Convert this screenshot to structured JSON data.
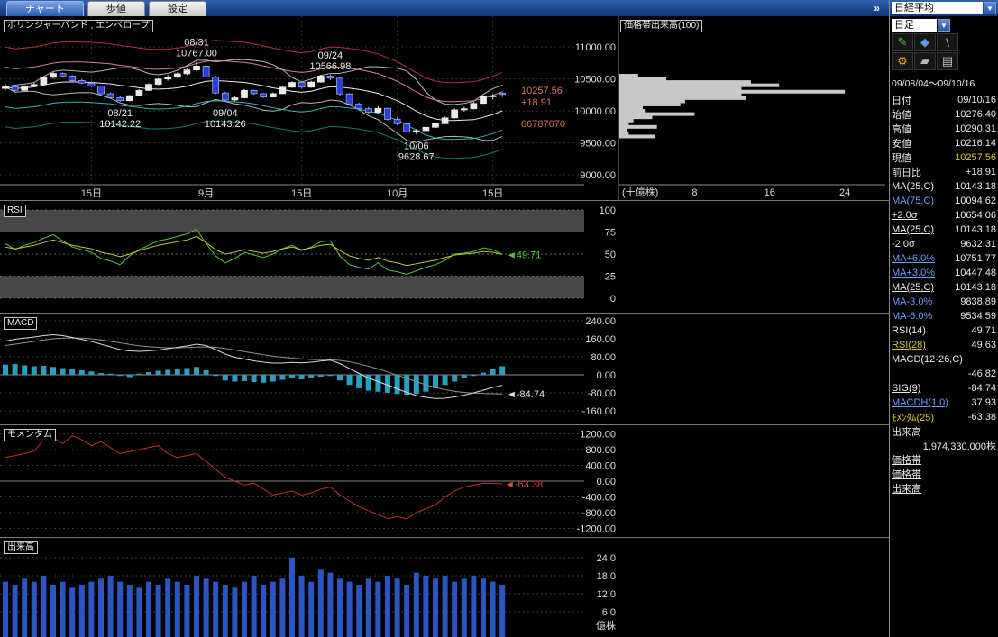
{
  "topbar": {
    "tabs": [
      {
        "label": "チャート",
        "active": true
      },
      {
        "label": "歩値",
        "active": false
      },
      {
        "label": "設定",
        "active": false
      }
    ],
    "overflow_icon": "»"
  },
  "sidebar": {
    "symbol": "日経平均",
    "period": "日足",
    "arrow_icon": "▼",
    "tools": [
      {
        "name": "draw-pencil",
        "glyph": "✎",
        "color": "#55c040"
      },
      {
        "name": "marker-diamond",
        "glyph": "◆",
        "color": "#5b9bea"
      },
      {
        "name": "trend-line",
        "glyph": "\\",
        "color": "#c8c8c8"
      },
      {
        "name": "settings-gear",
        "glyph": "⚙",
        "color": "#e0a325"
      },
      {
        "name": "eraser",
        "glyph": "▰",
        "color": "#b8b8b8"
      },
      {
        "name": "printer",
        "glyph": "▤",
        "color": "#c0c0c0"
      }
    ],
    "date_range": "09/08/04～09/10/16",
    "rows": [
      {
        "label": "日付",
        "value": "09/10/16"
      },
      {
        "label": "始値",
        "value": "10276.40"
      },
      {
        "label": "高値",
        "value": "10290.31"
      },
      {
        "label": "安値",
        "value": "10216.14"
      },
      {
        "label": "現値",
        "value": "10257.56",
        "vc": "yellow"
      },
      {
        "label": "前日比",
        "value": "+18.91"
      },
      {
        "label": "MA(25,C)",
        "value": "10143.18"
      },
      {
        "label": "MA(75,C)",
        "value": "10094.62",
        "lc": "cyan"
      },
      {
        "label": "+2.0σ",
        "value": "10654.06",
        "u": true
      },
      {
        "label": "MA(25,C)",
        "value": "10143.18",
        "u": true
      },
      {
        "label": "-2.0σ",
        "value": "9632.31"
      },
      {
        "label": "MA+6.0%",
        "value": "10751.77",
        "lc": "cyan",
        "u": true
      },
      {
        "label": "MA+3.0%",
        "value": "10447.48",
        "lc": "cyan",
        "u": true
      },
      {
        "label": "MA(25,C)",
        "value": "10143.18",
        "u": true
      },
      {
        "label": "MA-3.0%",
        "value": "9838.89",
        "lc": "cyan"
      },
      {
        "label": "MA-6.0%",
        "value": "9534.59",
        "lc": "cyan"
      },
      {
        "label": "RSI(14)",
        "value": "49.71"
      },
      {
        "label": "RSI(28)",
        "value": "49.63",
        "lc": "yellow",
        "u": true
      },
      {
        "label": "MACD(12-26,C)",
        "value": ""
      },
      {
        "label": "",
        "value": "-46.82"
      },
      {
        "label": "SIG(9)",
        "value": "-84.74",
        "u": true
      },
      {
        "label": "MACDH(1.0)",
        "value": "37.93",
        "lc": "cyan",
        "u": true
      },
      {
        "label": "ﾓﾒﾝﾀﾑ(25)",
        "value": "-63.38",
        "lc": "yellow"
      },
      {
        "label": "出来高",
        "value": ""
      },
      {
        "label": "",
        "value": "1,974,330,000株"
      }
    ],
    "links": [
      "価格帯",
      "価格帯",
      "出来高"
    ]
  },
  "chart_data": [
    {
      "id": "price",
      "type": "candlestick",
      "title": "ボリンジャーバンド , エンベロープ",
      "ylim": [
        8860,
        11480
      ],
      "y_ticks": [
        11000,
        10500,
        10000,
        9500,
        9000
      ],
      "x_ticks": [
        {
          "i": 9,
          "label": "15日"
        },
        {
          "i": 21,
          "label": "9月"
        },
        {
          "i": 31,
          "label": "15日"
        },
        {
          "i": 41,
          "label": "10月"
        },
        {
          "i": 51,
          "label": "15日"
        }
      ],
      "up_color": "#e9e9e9",
      "down_color": "#2b3fd2",
      "overlay_colors": {
        "env6": "#b03434",
        "env3": "#d98080",
        "sigma": "#b5b5b5",
        "ma": "#ececec",
        "env_3": "#35b0b0",
        "env_6": "#157878"
      },
      "overlays": [
        "MA+6.0%",
        "MA+3.0%",
        "+2.0σ",
        "MA(25,C)",
        "-2.0σ",
        "MA-3.0%",
        "MA-6.0%"
      ],
      "candles": [
        [
          10350,
          10420,
          10320,
          10375
        ],
        [
          10375,
          10400,
          10300,
          10320
        ],
        [
          10320,
          10400,
          10310,
          10388
        ],
        [
          10388,
          10440,
          10370,
          10412
        ],
        [
          10412,
          10540,
          10400,
          10524
        ],
        [
          10524,
          10610,
          10500,
          10585
        ],
        [
          10585,
          10600,
          10520,
          10545
        ],
        [
          10545,
          10560,
          10450,
          10473
        ],
        [
          10473,
          10500,
          10420,
          10435
        ],
        [
          10435,
          10460,
          10370,
          10390
        ],
        [
          10390,
          10400,
          10250,
          10268
        ],
        [
          10268,
          10290,
          10190,
          10205
        ],
        [
          10205,
          10230,
          10142,
          10160
        ],
        [
          10160,
          10250,
          10150,
          10238
        ],
        [
          10238,
          10340,
          10230,
          10320
        ],
        [
          10320,
          10430,
          10310,
          10414
        ],
        [
          10414,
          10510,
          10400,
          10497
        ],
        [
          10497,
          10560,
          10470,
          10530
        ],
        [
          10530,
          10600,
          10510,
          10580
        ],
        [
          10580,
          10660,
          10560,
          10640
        ],
        [
          10640,
          10767,
          10620,
          10700
        ],
        [
          10700,
          10710,
          10500,
          10530
        ],
        [
          10530,
          10550,
          10260,
          10280
        ],
        [
          10280,
          10300,
          10143,
          10170
        ],
        [
          10170,
          10230,
          10150,
          10205
        ],
        [
          10205,
          10340,
          10200,
          10320
        ],
        [
          10320,
          10330,
          10250,
          10270
        ],
        [
          10270,
          10280,
          10200,
          10217
        ],
        [
          10217,
          10290,
          10210,
          10270
        ],
        [
          10270,
          10390,
          10260,
          10370
        ],
        [
          10370,
          10460,
          10360,
          10444
        ],
        [
          10444,
          10450,
          10350,
          10370
        ],
        [
          10370,
          10470,
          10360,
          10450
        ],
        [
          10450,
          10560,
          10440,
          10544
        ],
        [
          10544,
          10567,
          10480,
          10510
        ],
        [
          10510,
          10520,
          10240,
          10265
        ],
        [
          10265,
          10280,
          10090,
          10110
        ],
        [
          10110,
          10130,
          10000,
          10033
        ],
        [
          10033,
          10060,
          9950,
          9979
        ],
        [
          9979,
          10070,
          9960,
          10040
        ],
        [
          10040,
          10050,
          9850,
          9867
        ],
        [
          9867,
          9900,
          9780,
          9799
        ],
        [
          9799,
          9820,
          9660,
          9674
        ],
        [
          9674,
          9720,
          9629,
          9691
        ],
        [
          9691,
          9770,
          9680,
          9744
        ],
        [
          9744,
          9820,
          9730,
          9799
        ],
        [
          9799,
          9910,
          9790,
          9891
        ],
        [
          9891,
          10040,
          9880,
          10016
        ],
        [
          10016,
          10060,
          9990,
          10034
        ],
        [
          10034,
          10140,
          10020,
          10117
        ],
        [
          10117,
          10240,
          10110,
          10225
        ],
        [
          10225,
          10260,
          10180,
          10238
        ],
        [
          10276.4,
          10290.31,
          10216.14,
          10257.56
        ]
      ],
      "annotations": [
        {
          "i": 12,
          "price": 10142.22,
          "pos": "below",
          "lines": [
            "08/21",
            "10142.22"
          ]
        },
        {
          "i": 20,
          "price": 10767.0,
          "pos": "above",
          "lines": [
            "08/31",
            "10767.00"
          ]
        },
        {
          "i": 23,
          "price": 10143.26,
          "pos": "below",
          "lines": [
            "09/04",
            "10143.26"
          ]
        },
        {
          "i": 34,
          "price": 10566.98,
          "pos": "above",
          "lines": [
            "09/24",
            "10566.98"
          ]
        },
        {
          "i": 43,
          "price": 9628.67,
          "pos": "below",
          "lines": [
            "10/06",
            "9628.67"
          ]
        }
      ],
      "current": {
        "price": "10257.56",
        "change": "+18.91",
        "extra": "66787670",
        "color": "#d8705a"
      }
    },
    {
      "id": "vbp",
      "type": "bar-h",
      "title": "価格帯出来高(100)",
      "unit": "(十億株)",
      "x_ticks": [
        8,
        16,
        24
      ],
      "xlim": [
        0,
        26
      ],
      "bar_color": "#c8c8c8",
      "bins": [
        {
          "price": 10550,
          "v": 2
        },
        {
          "price": 10500,
          "v": 5
        },
        {
          "price": 10450,
          "v": 14
        },
        {
          "price": 10400,
          "v": 17
        },
        {
          "price": 10350,
          "v": 13
        },
        {
          "price": 10300,
          "v": 24
        },
        {
          "price": 10250,
          "v": 13
        },
        {
          "price": 10200,
          "v": 13.5
        },
        {
          "price": 10150,
          "v": 7
        },
        {
          "price": 10100,
          "v": 6.5
        },
        {
          "price": 10050,
          "v": 2.5
        },
        {
          "price": 10000,
          "v": 2.8
        },
        {
          "price": 9950,
          "v": 8
        },
        {
          "price": 9900,
          "v": 3.5
        },
        {
          "price": 9850,
          "v": 1.5
        },
        {
          "price": 9800,
          "v": 1
        },
        {
          "price": 9750,
          "v": 4
        },
        {
          "price": 9700,
          "v": 0.8
        },
        {
          "price": 9650,
          "v": 1
        },
        {
          "price": 9600,
          "v": 3.8
        }
      ]
    },
    {
      "id": "rsi",
      "type": "line",
      "title": "RSI",
      "ylim": [
        0,
        100
      ],
      "y_ticks": [
        100,
        75,
        50,
        25,
        0
      ],
      "bands": [
        [
          75,
          100
        ],
        [
          0,
          25
        ]
      ],
      "series": [
        {
          "name": "RSI(14)",
          "color": "#58c433",
          "values": [
            62,
            55,
            60,
            63,
            68,
            72,
            65,
            58,
            55,
            52,
            45,
            42,
            38,
            48,
            55,
            60,
            65,
            67,
            70,
            73,
            78,
            62,
            48,
            40,
            45,
            52,
            49,
            46,
            50,
            56,
            60,
            54,
            58,
            64,
            65,
            48,
            38,
            35,
            33,
            40,
            32,
            30,
            27,
            31,
            35,
            38,
            43,
            50,
            51,
            53,
            57,
            55,
            49.71
          ]
        },
        {
          "name": "RSI(28)",
          "color": "#b8c832",
          "values": [
            58,
            56,
            58,
            60,
            63,
            66,
            63,
            60,
            58,
            56,
            52,
            50,
            47,
            50,
            54,
            57,
            60,
            62,
            64,
            66,
            70,
            63,
            55,
            50,
            52,
            55,
            53,
            51,
            53,
            56,
            58,
            55,
            57,
            60,
            61,
            54,
            48,
            45,
            43,
            46,
            42,
            40,
            37,
            39,
            41,
            43,
            46,
            49,
            50,
            51,
            53,
            52,
            49.63
          ]
        }
      ],
      "marker": {
        "text": "◄49.71",
        "color": "#58c433"
      }
    },
    {
      "id": "macd",
      "type": "macd",
      "title": "MACD",
      "y_ticks": [
        240,
        160,
        80,
        0,
        -80,
        -160
      ],
      "hist_color": "#2aa0c0",
      "macd_color": "#d8d8d8",
      "sig_color": "#909090",
      "macd": [
        150,
        158,
        163,
        168,
        174,
        178,
        174,
        166,
        157,
        148,
        136,
        124,
        112,
        106,
        104,
        106,
        110,
        116,
        122,
        128,
        136,
        130,
        112,
        92,
        78,
        70,
        62,
        56,
        52,
        52,
        55,
        53,
        56,
        61,
        65,
        50,
        28,
        6,
        -14,
        -30,
        -46,
        -62,
        -78,
        -92,
        -100,
        -105,
        -104,
        -98,
        -90,
        -80,
        -68,
        -56,
        -46.82
      ],
      "sig": [
        130,
        136,
        142,
        148,
        154,
        160,
        163,
        164,
        163,
        160,
        155,
        149,
        142,
        135,
        129,
        125,
        122,
        120,
        120,
        121,
        123,
        124,
        122,
        117,
        110,
        103,
        96,
        89,
        83,
        78,
        74,
        71,
        68,
        67,
        67,
        64,
        58,
        49,
        38,
        26,
        13,
        -1,
        -15,
        -30,
        -44,
        -56,
        -66,
        -73,
        -78,
        -81,
        -83,
        -84,
        -84.74
      ],
      "hist": [
        45,
        48,
        42,
        38,
        40,
        35,
        30,
        25,
        20,
        15,
        8,
        5,
        -5,
        -10,
        5,
        12,
        18,
        22,
        26,
        30,
        35,
        20,
        -5,
        -25,
        -30,
        -28,
        -32,
        -35,
        -30,
        -22,
        -15,
        -20,
        -15,
        -8,
        -5,
        -25,
        -45,
        -60,
        -70,
        -75,
        -80,
        -85,
        -88,
        -85,
        -75,
        -60,
        -45,
        -30,
        -15,
        -5,
        10,
        25,
        37.93
      ],
      "marker": {
        "text": "◄-84.74",
        "color": "#e0e0e0"
      }
    },
    {
      "id": "momentum",
      "type": "line",
      "title": "モメンタム",
      "y_ticks": [
        1200,
        800,
        400,
        0,
        -400,
        -800,
        -1200
      ],
      "color": "#c03028",
      "values": [
        600,
        650,
        700,
        760,
        1050,
        1100,
        950,
        1150,
        1050,
        900,
        1000,
        850,
        700,
        750,
        800,
        850,
        900,
        700,
        600,
        650,
        700,
        500,
        300,
        100,
        0,
        -100,
        -50,
        -200,
        -350,
        -300,
        -250,
        -350,
        -300,
        -200,
        -150,
        -350,
        -500,
        -650,
        -750,
        -850,
        -950,
        -900,
        -960,
        -800,
        -700,
        -600,
        -400,
        -250,
        -150,
        -100,
        -50,
        -60,
        -63.38
      ],
      "marker": {
        "text": "◄-63.38",
        "color": "#d04838"
      }
    },
    {
      "id": "volume",
      "type": "bar",
      "title": "出来高",
      "y_ticks": [
        24,
        18,
        12,
        6
      ],
      "unit": "億株",
      "color": "#2b55c0",
      "values": [
        16,
        15,
        17,
        16,
        18,
        15,
        16,
        14,
        15,
        16,
        17,
        18,
        16,
        15,
        14,
        16,
        15,
        17,
        16,
        15,
        18,
        17,
        16,
        15,
        14,
        16,
        18,
        15,
        16,
        17,
        24,
        18,
        16,
        20,
        19,
        17,
        16,
        15,
        17,
        16,
        18,
        17,
        15,
        19,
        18,
        17,
        18,
        16,
        17,
        18,
        17,
        16,
        15
      ]
    }
  ]
}
